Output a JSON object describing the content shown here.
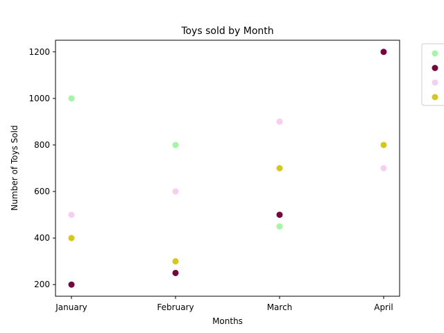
{
  "chart_data": {
    "type": "scatter",
    "title": "Toys sold by Month",
    "xlabel": "Months",
    "ylabel": "Number of Toys Sold",
    "categories": [
      "January",
      "February",
      "March",
      "April"
    ],
    "ylim": [
      150,
      1250
    ],
    "yticks": [
      200,
      400,
      600,
      800,
      1000,
      1200
    ],
    "grid": false,
    "legend": "right, outside plot, labels cut off",
    "series": [
      {
        "color": "#a6f5a6",
        "values": [
          1000,
          800,
          450,
          1200
        ]
      },
      {
        "color": "#74063e",
        "values": [
          200,
          250,
          500,
          1200
        ]
      },
      {
        "color": "#f7cdf0",
        "values": [
          500,
          600,
          900,
          700
        ]
      },
      {
        "color": "#d5c71d",
        "values": [
          400,
          300,
          700,
          800
        ]
      }
    ]
  }
}
